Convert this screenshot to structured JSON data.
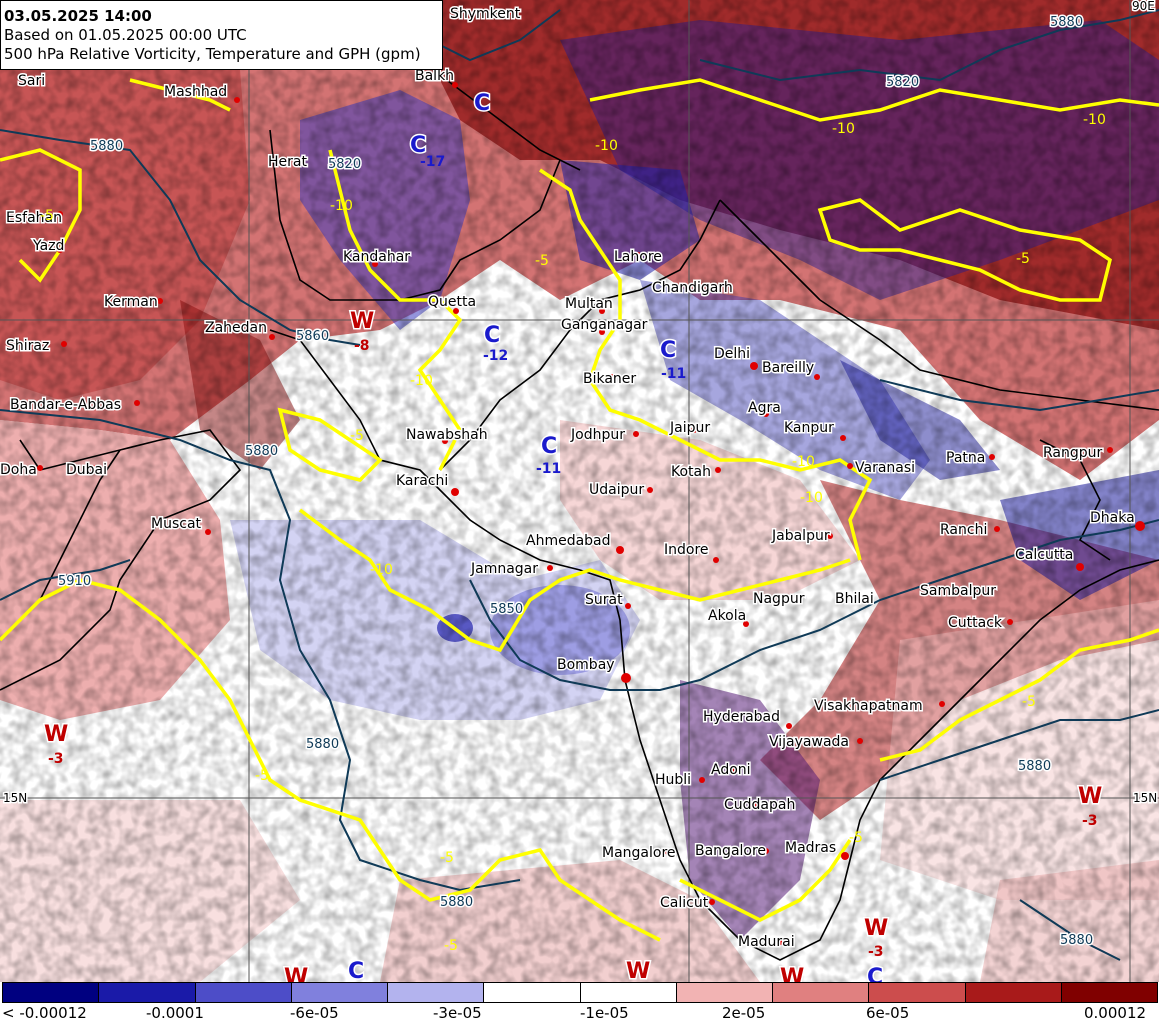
{
  "header": {
    "datetime": "03.05.2025 14:00",
    "based_on": "Based on 01.05.2025 00:00 UTC",
    "product": "500 hPa Relative Vorticity, Temperature and GPH (gpm)"
  },
  "colors": {
    "gph_contour": "#0f3a57",
    "temp_contour": "#ffff00",
    "high_label": "#c00000",
    "low_label": "#1a1acc",
    "border": "#000000"
  },
  "cities": [
    "Shymkent",
    "Sari",
    "Mashhad",
    "Balkh",
    "Herat",
    "Esfahan",
    "Yazd",
    "Kerman",
    "Zahedan",
    "Shiraz",
    "Kandahar",
    "Quetta",
    "Multan",
    "Lahore",
    "Chandigarh",
    "Ganganagar",
    "Delhi",
    "Bareilly",
    "Bikaner",
    "Bandar-e-Abbas",
    "Nawabshah",
    "Karachi",
    "Jodhpur",
    "Agra",
    "Kanpur",
    "Jaipur",
    "Varanasi",
    "Patna",
    "Rangpur",
    "Doha",
    "Dubai",
    "Kotah",
    "Udaipur",
    "Muscat",
    "Dhaka",
    "Ahmedabad",
    "Indore",
    "Ranchi",
    "Jabalpur",
    "Calcutta",
    "Jamnagar",
    "Surat",
    "Akola",
    "Nagpur",
    "Bhilai",
    "Sambalpur",
    "Cuttack",
    "Bombay",
    "Hyderabad",
    "Visakhapatnam",
    "Vijayawada",
    "Hubli",
    "Adoni",
    "Cuddapah",
    "Mangalore",
    "Bangalore",
    "Madras",
    "Calicut",
    "Madurai"
  ],
  "pressure_systems": [
    {
      "type": "W",
      "value": "-8"
    },
    {
      "type": "C",
      "value": "-12"
    },
    {
      "type": "C",
      "value": "-11"
    },
    {
      "type": "C",
      "value": "-11"
    },
    {
      "type": "C",
      "value": "-17"
    },
    {
      "type": "C",
      "value": ""
    },
    {
      "type": "W",
      "value": "-3"
    },
    {
      "type": "W",
      "value": "-3"
    },
    {
      "type": "W",
      "value": "-3"
    },
    {
      "type": "C",
      "value": ""
    },
    {
      "type": "C",
      "value": ""
    },
    {
      "type": "W",
      "value": ""
    },
    {
      "type": "W",
      "value": ""
    },
    {
      "type": "W",
      "value": ""
    }
  ],
  "gph_labels": [
    "5880",
    "5880",
    "5880",
    "5880",
    "5860",
    "5850",
    "5910",
    "5820",
    "5880",
    "5880",
    "5820",
    "5880"
  ],
  "temp_labels": [
    "-10",
    "-10",
    "-10",
    "-10",
    "-10",
    "-10",
    "-10",
    "-10",
    "-5",
    "-5",
    "-5",
    "-5",
    "-5",
    "-5",
    "-5",
    "-5",
    "-5"
  ],
  "grid_labels": [
    "15N",
    "15N",
    "90E"
  ],
  "colorbar": {
    "colors": [
      "#000080",
      "#1a1aa8",
      "#4d4dc8",
      "#8080dd",
      "#b3b3ee",
      "#ffffff",
      "#ffffff",
      "#f2b3b3",
      "#e08080",
      "#cc4d4d",
      "#a81a1a",
      "#800000"
    ],
    "tick_labels": [
      "< -0.00012",
      "-0.0001",
      "-6e-05",
      "-3e-05",
      "-1e-05",
      "2e-05",
      "6e-05",
      "0.00012"
    ]
  }
}
